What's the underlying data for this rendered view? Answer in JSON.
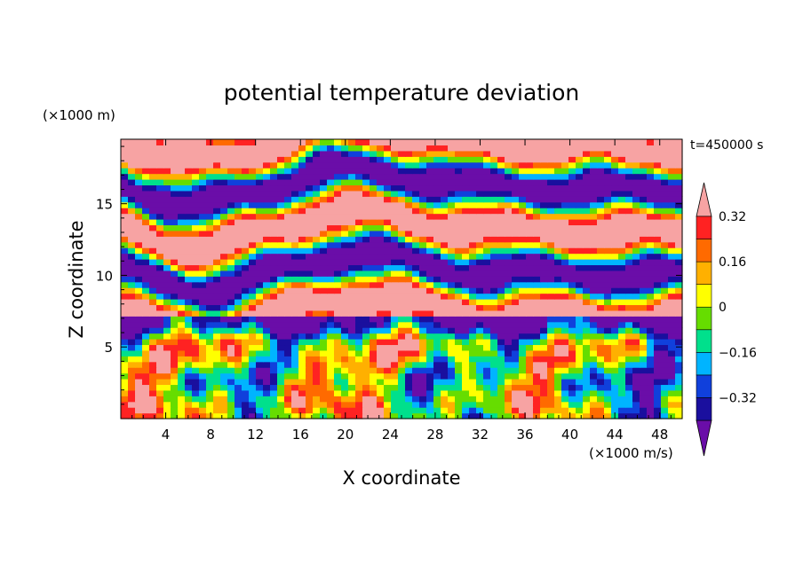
{
  "chart_data": {
    "type": "heatmap",
    "title": "potential temperature deviation",
    "xlabel": "X coordinate",
    "ylabel": "Z coordinate",
    "x_unit": "(×1000 m/s)",
    "y_unit": "(×1000 m)",
    "time_label": "t=450000 s",
    "xlim": [
      0,
      50
    ],
    "ylim": [
      0,
      19.5
    ],
    "x_ticks": [
      4,
      8,
      12,
      16,
      20,
      24,
      28,
      32,
      36,
      40,
      44,
      48
    ],
    "x_tick_labels": [
      "4",
      "8",
      "12",
      "16",
      "20",
      "24",
      "28",
      "32",
      "36",
      "40",
      "44",
      "48"
    ],
    "y_ticks": [
      5,
      10,
      15
    ],
    "y_tick_labels": [
      "5",
      "10",
      "15"
    ],
    "colorbar": {
      "levels": [
        -0.4,
        -0.32,
        -0.24,
        -0.16,
        -0.08,
        0,
        0.08,
        0.16,
        0.24,
        0.32,
        0.4
      ],
      "tick_values": [
        -0.32,
        -0.16,
        0,
        0.16,
        0.32
      ],
      "tick_labels": [
        "−0.32",
        "−0.16",
        "0",
        "0.16",
        "0.32"
      ],
      "colors": [
        "#6a0da8",
        "#1a0f9e",
        "#1040dc",
        "#00b4ff",
        "#00e08c",
        "#66dd00",
        "#ffff00",
        "#ffb000",
        "#ff6a00",
        "#ff2222",
        "#f7a3a3"
      ],
      "extend": "both"
    },
    "grid": false,
    "legend": "colorbar-right"
  }
}
